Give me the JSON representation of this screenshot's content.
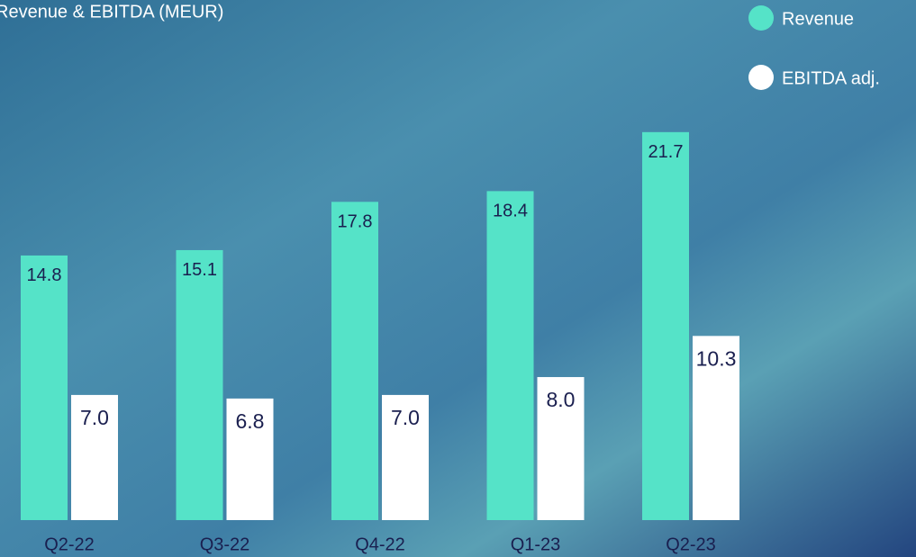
{
  "chart_data": {
    "type": "bar",
    "title": "Revenue & EBITDA (MEUR)",
    "categories": [
      "Q2-22",
      "Q3-22",
      "Q4-22",
      "Q1-23",
      "Q2-23"
    ],
    "series": [
      {
        "name": "Revenue",
        "color": "#55e3c8",
        "values": [
          14.8,
          15.1,
          17.8,
          18.4,
          21.7
        ],
        "value_labels": [
          "14.8",
          "15.1",
          "17.8",
          "18.4",
          "21.7"
        ]
      },
      {
        "name": "EBITDA adj.",
        "color": "#ffffff",
        "values": [
          7.0,
          6.8,
          7.0,
          8.0,
          10.3
        ],
        "value_labels": [
          "7.0",
          "6.8",
          "7.0",
          "8.0",
          "10.3"
        ]
      }
    ],
    "legend": "top-right"
  }
}
